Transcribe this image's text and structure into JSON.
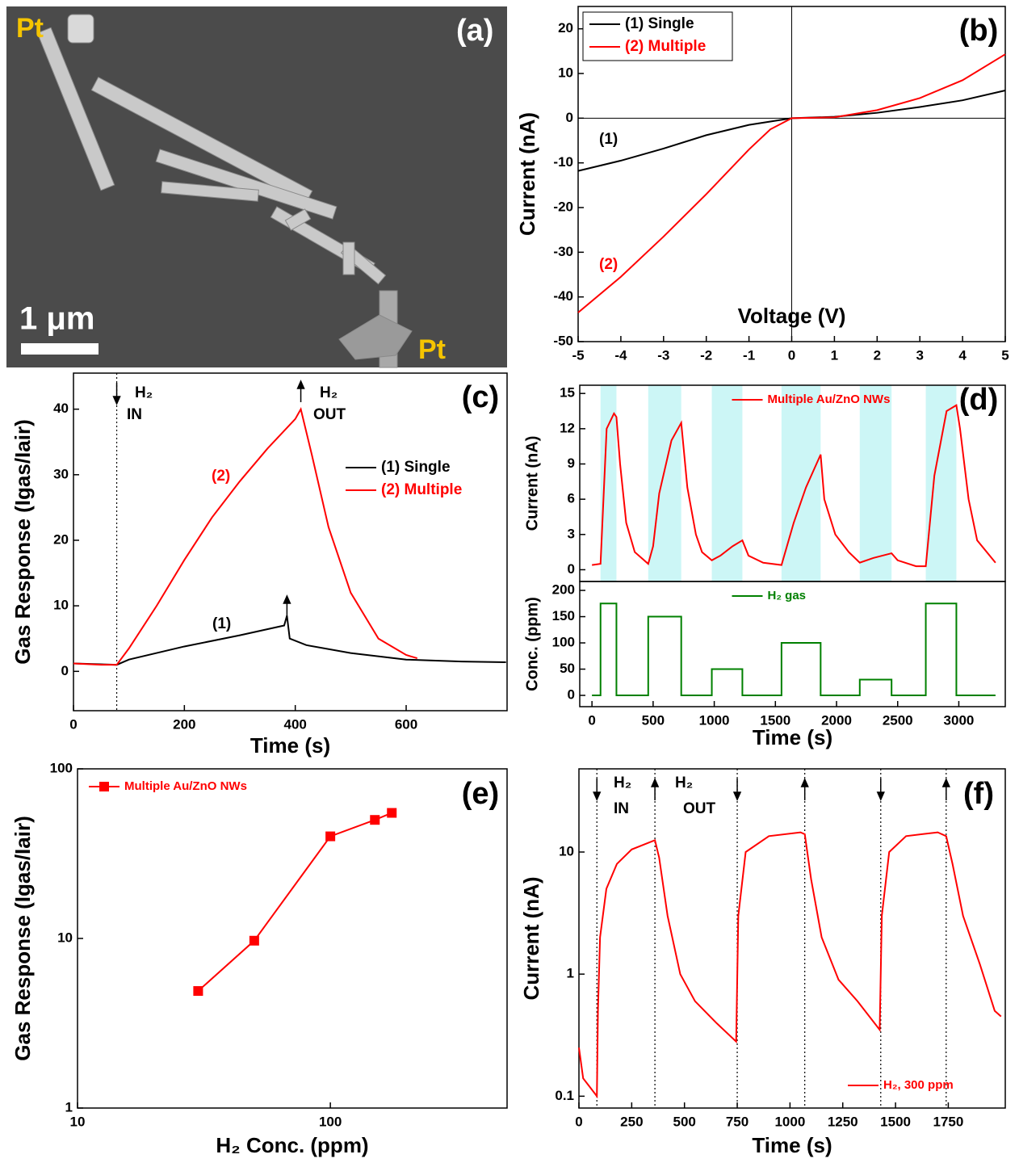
{
  "sem_image": {
    "panel_label": "(a)",
    "labels": [
      "Pt",
      "Pt"
    ],
    "scale_bar": "1 μm"
  },
  "chart_data": [
    {
      "type": "line",
      "panel_label": "(b)",
      "xlabel": "Voltage (V)",
      "ylabel": "Current (nA)",
      "xlim": [
        -5,
        5
      ],
      "ylim": [
        -50,
        25
      ],
      "xticks": [
        -5,
        -4,
        -3,
        -2,
        -1,
        0,
        1,
        2,
        3,
        4,
        5
      ],
      "yticks": [
        -50,
        -40,
        -30,
        -20,
        -10,
        0,
        10,
        20
      ],
      "origin_lines": true,
      "legend": "upper left",
      "series": [
        {
          "name": "(1) Single",
          "color": "#000000",
          "x": [
            -5,
            -4,
            -3,
            -2,
            -1,
            0,
            1,
            2,
            3,
            4,
            5
          ],
          "values": [
            -11.8,
            -9.5,
            -6.8,
            -3.8,
            -1.5,
            0,
            0.3,
            1.2,
            2.5,
            4,
            6.2
          ]
        },
        {
          "name": "(2) Multiple",
          "color": "#ff0000",
          "x": [
            -5,
            -4,
            -3,
            -2,
            -1,
            -0.5,
            0,
            1,
            2,
            3,
            4,
            5
          ],
          "values": [
            -43.5,
            -35.5,
            -26.5,
            -17,
            -7,
            -2.5,
            0,
            0.2,
            1.8,
            4.5,
            8.5,
            14.3
          ]
        }
      ],
      "annotations": [
        {
          "text": "(1)",
          "color": "#000000"
        },
        {
          "text": "(2)",
          "color": "#ff0000"
        }
      ]
    },
    {
      "type": "line",
      "panel_label": "(c)",
      "xlabel": "Time (s)",
      "ylabel": "Gas Response (Igas/Iair)",
      "xlim": [
        0,
        782
      ],
      "ylim": [
        -6,
        45.5
      ],
      "xticks": [
        0,
        200,
        400,
        600
      ],
      "yticks": [
        0,
        10,
        20,
        30,
        40
      ],
      "legend": "center right",
      "series": [
        {
          "name": "(1) Single",
          "color": "#000000",
          "x": [
            0,
            78,
            100,
            200,
            300,
            380,
            385,
            390,
            420,
            500,
            600,
            700,
            780
          ],
          "values": [
            1.2,
            1.0,
            1.8,
            3.8,
            5.5,
            7,
            8.5,
            5,
            4,
            2.8,
            1.8,
            1.5,
            1.4
          ]
        },
        {
          "name": "(2) Multiple",
          "color": "#ff0000",
          "x": [
            0,
            50,
            78,
            100,
            150,
            200,
            250,
            300,
            350,
            400,
            410,
            430,
            460,
            500,
            550,
            600,
            620
          ],
          "values": [
            1.2,
            1.0,
            1.0,
            3.5,
            10,
            17,
            23.5,
            29,
            34,
            38.5,
            40,
            33,
            22,
            12,
            5,
            2.5,
            2.0
          ]
        }
      ],
      "vlines": [
        78
      ],
      "arrows": [
        {
          "x": 78,
          "direction": "down"
        },
        {
          "x": 410,
          "direction": "up"
        },
        {
          "x": 385,
          "direction": "up"
        }
      ],
      "annotations": [
        {
          "text": "(1)",
          "color": "#000000"
        },
        {
          "text": "(2)",
          "color": "#ff0000"
        },
        {
          "text": "H₂",
          "color": "#000000"
        },
        {
          "text": "IN",
          "color": "#000000"
        },
        {
          "text": "H₂",
          "color": "#000000"
        },
        {
          "text": "OUT",
          "color": "#000000"
        }
      ]
    },
    {
      "type": "line",
      "panel_label": "(d)",
      "ylabel": "Current (nA)",
      "xlim": [
        -100,
        3380
      ],
      "ylim": [
        -1,
        15.7
      ],
      "yticks": [
        0,
        3,
        6,
        9,
        12,
        15
      ],
      "legend": "upper center",
      "spans": [
        [
          70,
          200
        ],
        [
          460,
          730
        ],
        [
          980,
          1230
        ],
        [
          1550,
          1870
        ],
        [
          2190,
          2450
        ],
        [
          2730,
          2980
        ]
      ],
      "series": [
        {
          "name": "Multiple Au/ZnO NWs",
          "color": "#ff0000",
          "x": [
            0,
            70,
            120,
            180,
            200,
            230,
            280,
            350,
            460,
            500,
            550,
            650,
            730,
            780,
            850,
            900,
            980,
            1050,
            1150,
            1230,
            1280,
            1400,
            1550,
            1650,
            1750,
            1870,
            1900,
            1990,
            2100,
            2190,
            2300,
            2450,
            2500,
            2650,
            2730,
            2800,
            2900,
            2980,
            3010,
            3080,
            3150,
            3300
          ],
          "values": [
            0.4,
            0.5,
            12,
            13.3,
            13,
            9,
            4,
            1.5,
            0.5,
            2,
            6.5,
            11,
            12.5,
            7,
            3,
            1.5,
            0.8,
            1.2,
            2,
            2.5,
            1.2,
            0.6,
            0.4,
            4,
            7,
            9.8,
            6,
            3,
            1.5,
            0.6,
            1,
            1.4,
            0.8,
            0.3,
            0.3,
            8,
            13.5,
            14,
            12,
            6,
            2.5,
            0.6
          ]
        }
      ]
    },
    {
      "type": "line",
      "xlabel": "Time (s)",
      "ylabel": "Conc. (ppm)",
      "xlim": [
        -100,
        3380
      ],
      "ylim": [
        -21.5,
        217
      ],
      "xticks": [
        0,
        500,
        1000,
        1500,
        2000,
        2500,
        3000
      ],
      "yticks": [
        0,
        50,
        100,
        150,
        200
      ],
      "legend": "upper center",
      "series": [
        {
          "name": "H₂ gas",
          "color": "#008000",
          "x": [
            0,
            70,
            70,
            200,
            200,
            460,
            460,
            730,
            730,
            980,
            980,
            1230,
            1230,
            1550,
            1550,
            1870,
            1870,
            2190,
            2190,
            2450,
            2450,
            2730,
            2730,
            2980,
            2980,
            3300
          ],
          "values": [
            0,
            0,
            175,
            175,
            0,
            0,
            150,
            150,
            0,
            0,
            50,
            50,
            0,
            0,
            100,
            100,
            0,
            0,
            30,
            30,
            0,
            0,
            175,
            175,
            0,
            0
          ]
        }
      ]
    },
    {
      "type": "line",
      "panel_label": "(e)",
      "xlabel": "H₂ Conc. (ppm)",
      "ylabel": "Gas Response (Igas/Iair)",
      "xscale": "log",
      "yscale": "log",
      "xlim": [
        10,
        500
      ],
      "ylim": [
        1,
        100
      ],
      "xticks": [
        10,
        100
      ],
      "yticks": [
        1,
        10,
        100
      ],
      "legend": "upper left",
      "series": [
        {
          "name": "Multiple Au/ZnO NWs",
          "color": "#ff0000",
          "marker": "square",
          "x": [
            30,
            50,
            100,
            150,
            175
          ],
          "values": [
            4.9,
            9.7,
            40,
            50,
            55
          ]
        }
      ]
    },
    {
      "type": "line",
      "panel_label": "(f)",
      "xlabel": "Time (s)",
      "ylabel": "Current (nA)",
      "yscale": "log",
      "xlim": [
        0,
        2020
      ],
      "ylim": [
        0.08,
        48
      ],
      "xticks": [
        0,
        250,
        500,
        750,
        1000,
        1250,
        1500,
        1750
      ],
      "yticks": [
        0.1,
        1,
        10
      ],
      "legend": "lower right",
      "series": [
        {
          "name": "H₂, 300 ppm",
          "color": "#ff0000",
          "x": [
            0,
            20,
            50,
            85,
            90,
            100,
            130,
            180,
            250,
            360,
            380,
            420,
            480,
            550,
            650,
            745,
            755,
            790,
            900,
            1050,
            1070,
            1100,
            1150,
            1230,
            1320,
            1425,
            1435,
            1470,
            1550,
            1700,
            1740,
            1770,
            1820,
            1900,
            1970,
            2000
          ],
          "values": [
            0.25,
            0.14,
            0.12,
            0.1,
            0.5,
            2,
            5,
            8,
            10.5,
            12.5,
            9,
            3,
            1,
            0.6,
            0.4,
            0.28,
            3,
            10,
            13.5,
            14.5,
            14,
            6,
            2,
            0.9,
            0.6,
            0.35,
            3,
            10,
            13.5,
            14.5,
            13.5,
            8,
            3,
            1.2,
            0.5,
            0.45
          ]
        }
      ],
      "vlines": [
        85,
        360,
        750,
        1070,
        1430,
        1740
      ],
      "arrows": [
        {
          "x": 85,
          "direction": "down"
        },
        {
          "x": 360,
          "direction": "up"
        },
        {
          "x": 750,
          "direction": "down"
        },
        {
          "x": 1070,
          "direction": "up"
        },
        {
          "x": 1430,
          "direction": "down"
        },
        {
          "x": 1740,
          "direction": "up"
        }
      ],
      "annotations": [
        {
          "text": "H₂",
          "color": "#000000"
        },
        {
          "text": "IN",
          "color": "#000000"
        },
        {
          "text": "H₂",
          "color": "#000000"
        },
        {
          "text": "OUT",
          "color": "#000000"
        }
      ]
    }
  ]
}
